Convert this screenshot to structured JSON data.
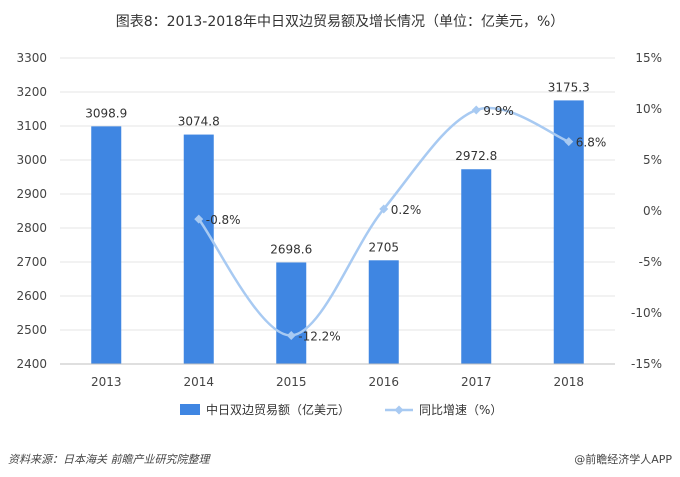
{
  "title": "图表8：2013-2018年中日双边贸易额及增长情况（单位：亿美元，%）",
  "footer": {
    "source": "资料来源：日本海关 前瞻产业研究院整理",
    "brand": "@前瞻经济学人APP"
  },
  "colors": {
    "bar": "#3f86e2",
    "line": "#a8caf2",
    "grid": "#e6e6e6"
  },
  "chart_data": {
    "type": "bar",
    "title": "图表8：2013-2018年中日双边贸易额及增长情况（单位：亿美元，%）",
    "categories": [
      "2013",
      "2014",
      "2015",
      "2016",
      "2017",
      "2018"
    ],
    "series": [
      {
        "name": "中日双边贸易额（亿美元）",
        "type": "bar",
        "axis": "left",
        "values": [
          3098.9,
          3074.8,
          2698.6,
          2705,
          2972.8,
          3175.3
        ],
        "labels": [
          "3098.9",
          "3074.8",
          "2698.6",
          "2705",
          "2972.8",
          "3175.3"
        ]
      },
      {
        "name": "同比增速（%）",
        "type": "line",
        "axis": "right",
        "values": [
          null,
          -0.8,
          -12.2,
          0.2,
          9.9,
          6.8
        ],
        "labels": [
          "",
          "-0.8%",
          "-12.2%",
          "0.2%",
          "9.9%",
          "6.8%"
        ]
      }
    ],
    "yleft": {
      "min": 2400,
      "max": 3300,
      "ticks": [
        "3300",
        "3200",
        "3100",
        "3000",
        "2900",
        "2800",
        "2700",
        "2600",
        "2500",
        "2400"
      ]
    },
    "yright": {
      "min": -15,
      "max": 15,
      "ticks": [
        "15%",
        "10%",
        "5%",
        "0%",
        "-5%",
        "-10%",
        "-15%"
      ]
    },
    "grid": true,
    "legend": "bottom-center"
  }
}
